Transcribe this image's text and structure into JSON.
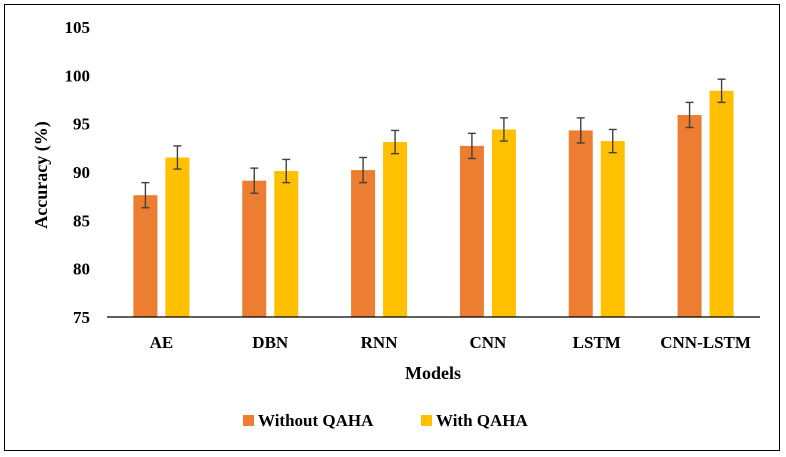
{
  "chart_data": {
    "type": "bar",
    "title": "",
    "xlabel": "Models",
    "ylabel": "Accuracy (%)",
    "ylim": [
      75,
      105
    ],
    "yticks": [
      75,
      80,
      85,
      90,
      95,
      100,
      105
    ],
    "grid": false,
    "legend_position": "bottom",
    "categories": [
      "AE",
      "DBN",
      "RNN",
      "CNN",
      "LSTM",
      "CNN-LSTM"
    ],
    "series": [
      {
        "name": "Without QAHA",
        "color": "#ED7D31",
        "values": [
          87.6,
          89.1,
          90.2,
          92.7,
          94.3,
          95.9
        ],
        "errors": [
          1.3,
          1.3,
          1.3,
          1.3,
          1.3,
          1.3
        ]
      },
      {
        "name": "With QAHA",
        "color": "#FFC000",
        "values": [
          91.5,
          90.1,
          93.1,
          94.4,
          93.2,
          98.4
        ],
        "errors": [
          1.2,
          1.2,
          1.2,
          1.2,
          1.2,
          1.2
        ]
      }
    ]
  }
}
